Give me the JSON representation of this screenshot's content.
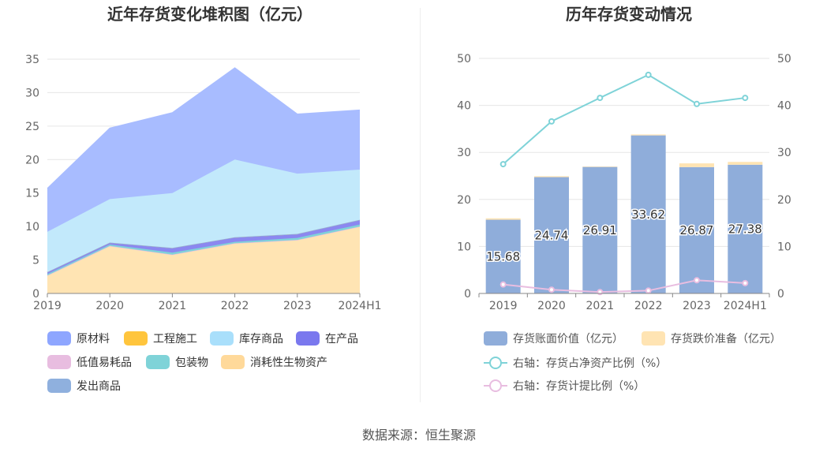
{
  "chart_data": [
    {
      "type": "area",
      "title": "近年存货变化堆积图（亿元）",
      "stacked": true,
      "categories": [
        "2019",
        "2020",
        "2021",
        "2022",
        "2023",
        "2024H1"
      ],
      "ylim": [
        0,
        35
      ],
      "yticks": [
        0,
        5,
        10,
        15,
        20,
        25,
        30,
        35
      ],
      "grid": true,
      "legend_position": "bottom",
      "series": [
        {
          "name": "消耗性生物资产",
          "color": "#ffe4b3",
          "values": [
            2.7,
            7.1,
            5.8,
            7.5,
            8.0,
            10.0
          ]
        },
        {
          "name": "低值易耗品",
          "color": "#e8bde0",
          "values": [
            0.0,
            0.0,
            0.0,
            0.0,
            0.0,
            0.0
          ]
        },
        {
          "name": "包装物",
          "color": "#7fd3d8",
          "values": [
            0.2,
            0.2,
            0.3,
            0.2,
            0.3,
            0.3
          ]
        },
        {
          "name": "在产品",
          "color": "#8b88f0",
          "values": [
            0.3,
            0.3,
            0.7,
            0.7,
            0.6,
            0.7
          ]
        },
        {
          "name": "工程施工",
          "color": "#ffc53d",
          "values": [
            0.0,
            0.0,
            0.0,
            0.0,
            0.0,
            0.0
          ]
        },
        {
          "name": "发出商品",
          "color": "#8fb0de",
          "values": [
            0.0,
            0.0,
            0.0,
            0.0,
            0.0,
            0.0
          ]
        },
        {
          "name": "库存商品",
          "color": "#c2e9fb",
          "values": [
            6.0,
            6.5,
            8.2,
            11.6,
            9.0,
            7.5
          ]
        },
        {
          "name": "原材料",
          "color": "#a8bcff",
          "values": [
            6.5,
            10.6,
            12.0,
            13.7,
            8.9,
            8.9
          ]
        }
      ],
      "legend": [
        {
          "name": "原材料",
          "color": "#8ea6ff"
        },
        {
          "name": "工程施工",
          "color": "#ffc53d"
        },
        {
          "name": "库存商品",
          "color": "#a9dffb"
        },
        {
          "name": "在产品",
          "color": "#7a78ee"
        },
        {
          "name": "低值易耗品",
          "color": "#e8bde0"
        },
        {
          "name": "包装物",
          "color": "#7fd3d8"
        },
        {
          "name": "消耗性生物资产",
          "color": "#ffd99a"
        },
        {
          "name": "发出商品",
          "color": "#8fb0de"
        }
      ]
    },
    {
      "type": "bar",
      "title": "历年存货变动情况",
      "categories": [
        "2019",
        "2020",
        "2021",
        "2022",
        "2023",
        "2024H1"
      ],
      "ylim": [
        0,
        50
      ],
      "y2lim": [
        0,
        50
      ],
      "yticks": [
        0,
        10,
        20,
        30,
        40,
        50
      ],
      "grid": true,
      "legend_position": "bottom",
      "series": [
        {
          "name": "存货账面价值（亿元）",
          "kind": "bar",
          "stack": "a",
          "color": "#8fadda",
          "values": [
            15.68,
            24.74,
            26.91,
            33.62,
            26.87,
            27.38
          ],
          "labels": [
            "15.68",
            "24.74",
            "26.91",
            "33.62",
            "26.87",
            "27.38"
          ]
        },
        {
          "name": "存货跌价准备（亿元）",
          "kind": "bar",
          "stack": "a",
          "color": "#ffe4b3",
          "values": [
            0.3,
            0.2,
            0.1,
            0.2,
            0.8,
            0.6
          ]
        },
        {
          "name": "右轴：存货占净资产比例（%）",
          "kind": "line",
          "axis": "right",
          "color": "#7fd3d8",
          "values": [
            27.5,
            36.6,
            41.6,
            46.5,
            40.3,
            41.6
          ]
        },
        {
          "name": "右轴：存货计提比例（%）",
          "kind": "line",
          "axis": "right",
          "color": "#e8bde0",
          "values": [
            1.9,
            0.8,
            0.3,
            0.6,
            2.8,
            2.2
          ]
        }
      ]
    }
  ],
  "source_text": "数据来源：恒生聚源"
}
